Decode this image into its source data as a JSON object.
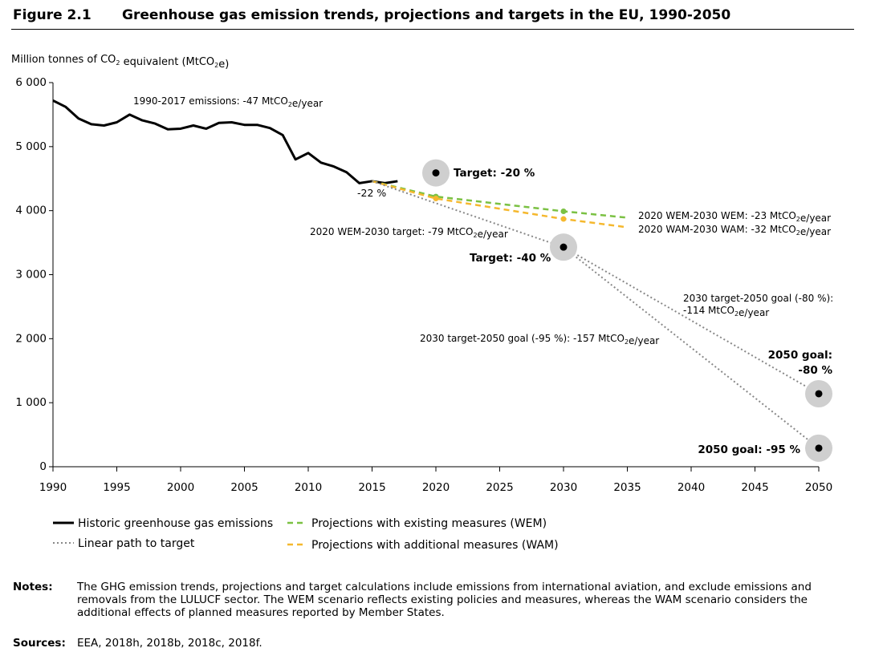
{
  "figure": {
    "number": "Figure 2.1",
    "title": "Greenhouse gas emission trends, projections and targets in the EU, 1990-2050"
  },
  "notes": {
    "label": "Notes:",
    "text": "The GHG emission trends, projections and target calculations include emissions from international aviation, and exclude emissions and removals from the LULUCF sector. The WEM scenario reflects existing policies and measures, whereas the WAM scenario considers the additional effects of planned measures reported by Member States."
  },
  "sources": {
    "label": "Sources:",
    "text": "EEA, 2018h, 2018b, 2018c, 2018f."
  },
  "chart_data": {
    "type": "line",
    "ylabel": "Million tonnes of CO₂ equivalent (MtCO₂e)",
    "xlim": [
      1990,
      2050
    ],
    "ylim": [
      0,
      6000
    ],
    "x_ticks": [
      1990,
      1995,
      2000,
      2005,
      2010,
      2015,
      2020,
      2025,
      2030,
      2035,
      2040,
      2045,
      2050
    ],
    "y_ticks": [
      {
        "value": 0,
        "label": "0"
      },
      {
        "value": 1000,
        "label": "1 000"
      },
      {
        "value": 2000,
        "label": "2 000"
      },
      {
        "value": 3000,
        "label": "3 000"
      },
      {
        "value": 4000,
        "label": "4 000"
      },
      {
        "value": 5000,
        "label": "5 000"
      },
      {
        "value": 6000,
        "label": "6 000"
      }
    ],
    "grid": false,
    "series": [
      {
        "name": "Historic greenhouse gas emissions",
        "style": "solid",
        "color": "#000000",
        "x": [
          1990,
          1991,
          1992,
          1993,
          1994,
          1995,
          1996,
          1997,
          1998,
          1999,
          2000,
          2001,
          2002,
          2003,
          2004,
          2005,
          2006,
          2007,
          2008,
          2009,
          2010,
          2011,
          2012,
          2013,
          2014,
          2015,
          2016,
          2017
        ],
        "y": [
          5720,
          5620,
          5440,
          5350,
          5330,
          5380,
          5500,
          5410,
          5360,
          5270,
          5280,
          5330,
          5280,
          5370,
          5380,
          5340,
          5340,
          5290,
          5180,
          4800,
          4900,
          4750,
          4690,
          4600,
          4430,
          4460,
          4430,
          4460
        ]
      },
      {
        "name": "Projections with existing measures (WEM)",
        "style": "dashed",
        "color": "#7bc143",
        "x": [
          2015,
          2020,
          2030,
          2035
        ],
        "y": [
          4460,
          4220,
          3990,
          3890
        ]
      },
      {
        "name": "Projections with additional measures (WAM)",
        "style": "dashed",
        "color": "#f5b82e",
        "x": [
          2015,
          2020,
          2030,
          2035
        ],
        "y": [
          4460,
          4190,
          3870,
          3740
        ]
      },
      {
        "name": "Linear path to target",
        "style": "dotted",
        "color": "#888888",
        "segments": [
          {
            "x": [
              2015,
              2030
            ],
            "y": [
              4460,
              3430
            ]
          },
          {
            "x": [
              2030,
              2050
            ],
            "y": [
              3430,
              1140
            ]
          },
          {
            "x": [
              2030,
              2050
            ],
            "y": [
              3430,
              290
            ]
          }
        ]
      }
    ],
    "targets": [
      {
        "x": 2020,
        "y": 4590,
        "label": "Target: -20 %"
      },
      {
        "x": 2030,
        "y": 3430,
        "label": "Target: -40 %"
      },
      {
        "x": 2050,
        "y": 1140,
        "label": "2050 goal: -80 %"
      },
      {
        "x": 2050,
        "y": 290,
        "label": "2050 goal: -95 %"
      }
    ],
    "annotations": [
      "1990-2017 emissions: -47 MtCO₂e/year",
      "-22 %",
      "2020 WEM-2030 target: -79 MtCO₂e/year",
      "2020 WEM-2030 WEM: -23 MtCO₂e/year",
      "2020 WAM-2030 WAM: -32 MtCO₂e/year",
      "2030 target-2050 goal (-80 %): -114 MtCO₂e/year",
      "2030 target-2050 goal (-95 %): -157 MtCO₂e/year"
    ],
    "legend": {
      "placement": "bottom",
      "items": [
        "Historic greenhouse gas emissions",
        "Linear path to target",
        "Projections with existing measures (WEM)",
        "Projections with additional measures (WAM)"
      ]
    }
  }
}
